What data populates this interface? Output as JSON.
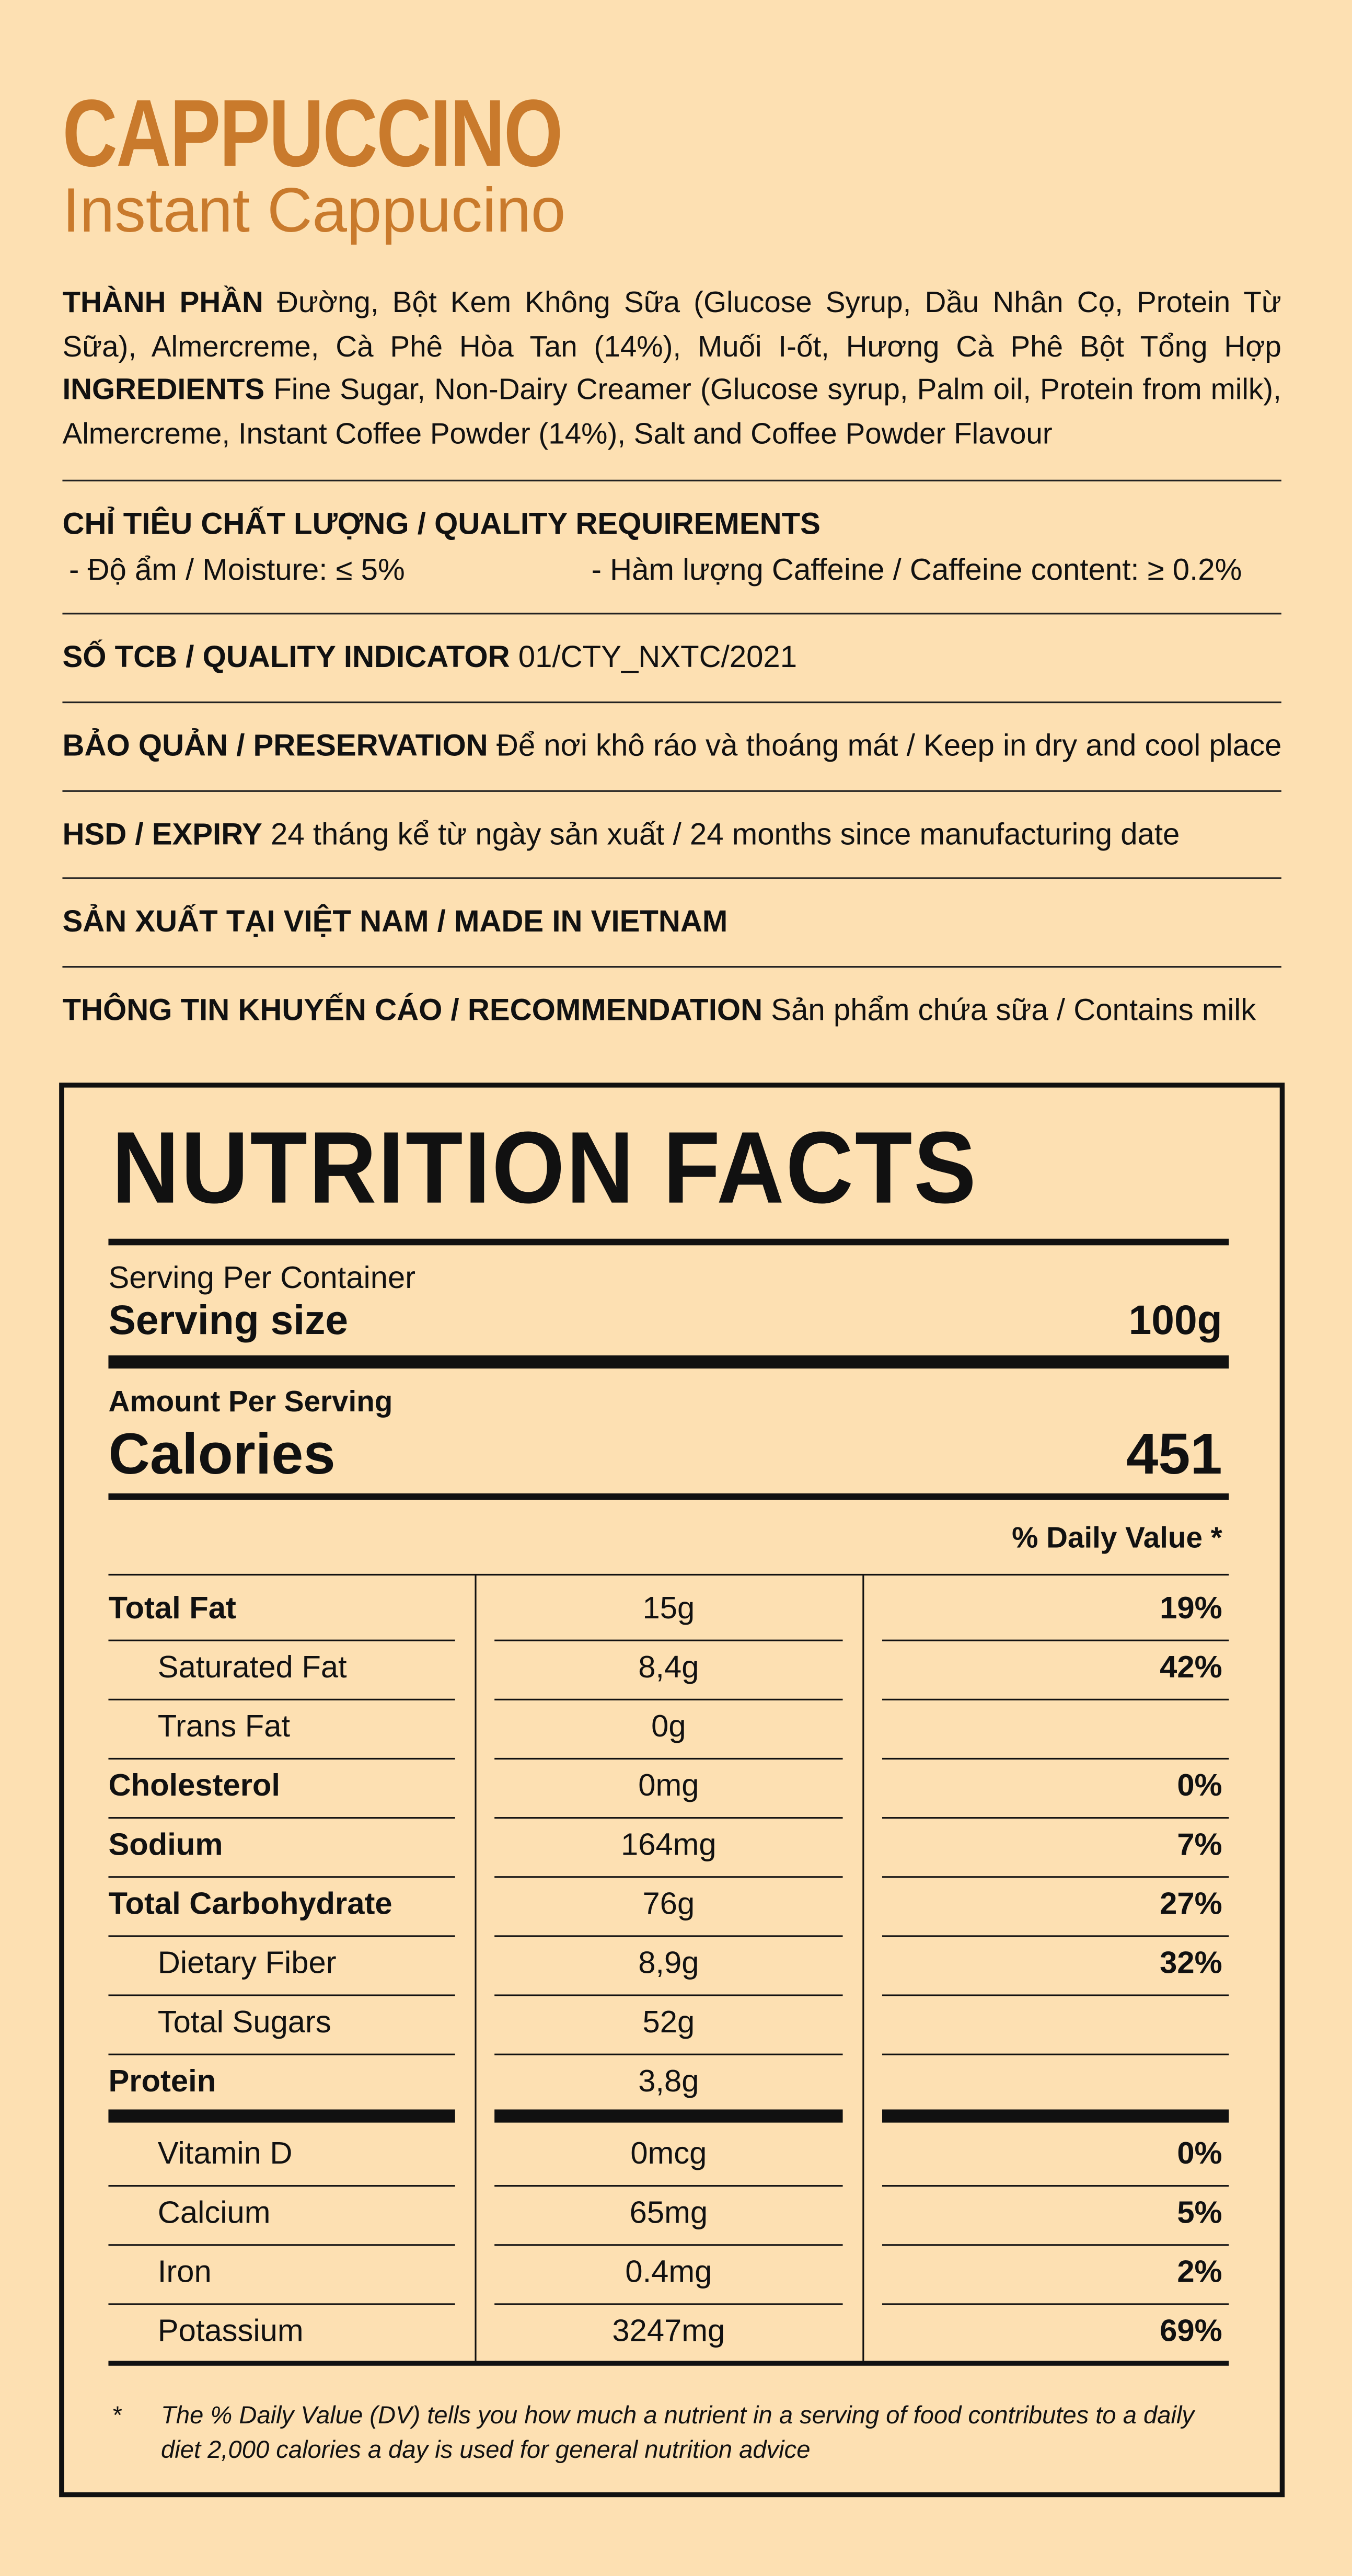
{
  "header": {
    "title": "CAPPUCCINO",
    "subtitle": "Instant Cappucino"
  },
  "ingredients": [
    {
      "label": "THÀNH PHẦN",
      "text": "Đường, Bột Kem Không Sữa (Glucose Syrup, Dầu Nhân Cọ, Protein Từ Sữa), Almercreme, Cà Phê Hòa Tan (14%), Muối I-ốt, Hương Cà Phê Bột Tổng Hợp"
    },
    {
      "label": "INGREDIENTS",
      "text": "Fine Sugar, Non-Dairy Creamer (Glucose syrup, Palm oil, Protein from milk), Almercreme, Instant Coffee Powder (14%), Salt and Coffee Powder Flavour"
    }
  ],
  "quality": {
    "label": "CHỈ TIÊU CHẤT LƯỢNG / QUALITY REQUIREMENTS",
    "items": [
      "- Độ ẩm / Moisture: ≤ 5%",
      "- Hàm lượng Caffeine / Caffeine content: ≥ 0.2%"
    ]
  },
  "info_rows": [
    {
      "label": "SỐ TCB / QUALITY INDICATOR",
      "text": "01/CTY_NXTC/2021"
    },
    {
      "label": "BẢO QUẢN / PRESERVATION",
      "text": "Để nơi khô ráo và thoáng mát / Keep in dry and cool place"
    },
    {
      "label": "HSD / EXPIRY",
      "text": "24 tháng kể từ ngày sản xuất / 24 months since manufacturing date"
    },
    {
      "label": "SẢN XUẤT TẠI VIỆT NAM / MADE IN VIETNAM"
    },
    {
      "label": "THÔNG TIN KHUYẾN CÁO / RECOMMENDATION",
      "text": "Sản phẩm chứa sữa / Contains milk"
    }
  ],
  "nutrition": {
    "title": "NUTRITION FACTS",
    "serving_per_container_label": "Serving Per Container",
    "serving_size_label": "Serving size",
    "serving_size": "100g",
    "amount_label": "Amount Per Serving",
    "calories_label": "Calories",
    "calories": 451,
    "daily_value_header": "% Daily Value *",
    "rows": [
      {
        "name": "Total Fat",
        "amount": "15g",
        "dv": "19%",
        "bold": true
      },
      {
        "name": "Saturated Fat",
        "amount": "8,4g",
        "dv": "42%",
        "bold": false
      },
      {
        "name": "Trans Fat",
        "amount": "0g",
        "bold": false
      },
      {
        "name": "Cholesterol",
        "amount": "0mg",
        "dv": "0%",
        "bold": true
      },
      {
        "name": "Sodium",
        "amount": "164mg",
        "dv": "7%",
        "bold": true
      },
      {
        "name": "Total Carbohydrate",
        "amount": "76g",
        "dv": "27%",
        "bold": true
      },
      {
        "name": "Dietary Fiber",
        "amount": "8,9g",
        "dv": "32%",
        "bold": false
      },
      {
        "name": "Total Sugars",
        "amount": "52g",
        "bold": false
      },
      {
        "name": "Protein",
        "amount": "3,8g",
        "bold": true
      }
    ],
    "vitamins": [
      {
        "name": "Vitamin D",
        "amount": "0mcg",
        "dv": "0%",
        "bold": false
      },
      {
        "name": "Calcium",
        "amount": "65mg",
        "dv": "5%",
        "bold": false
      },
      {
        "name": "Iron",
        "amount": "0.4mg",
        "dv": "2%",
        "bold": false
      },
      {
        "name": "Potassium",
        "amount": "3247mg",
        "dv": "69%",
        "bold": false
      }
    ],
    "footnote_mark": "*",
    "footnote": "The % Daily Value (DV) tells you how much a nutrient in a serving of food contributes to a daily diet 2,000 calories a day is used for general nutrition advice"
  }
}
